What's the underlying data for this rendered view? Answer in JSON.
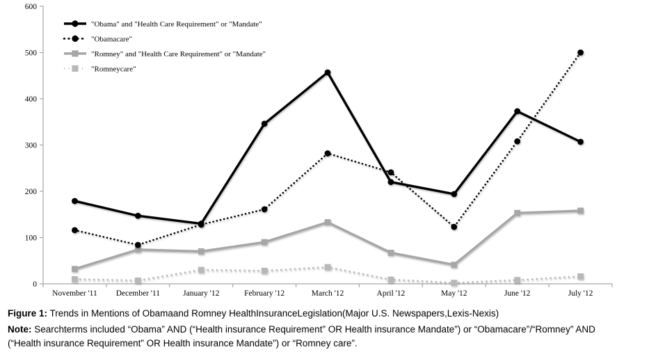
{
  "figure": {
    "caption_label": "Figure 1:",
    "caption_text": "Trends in Mentions of Obamaand Romney HealthInsuranceLegislation(Major U.S. Newspapers,Lexis-Nexis)",
    "note_label": "Note:",
    "note_text": "Searchterms included “Obama” AND (“Health insurance Requirement” OR Health insurance Mandate”) or “Obamacare”/“Romney” AND (“Health insurance Requirement” OR Health insurance Mandate”) or “Romney care”."
  },
  "chart_data": {
    "type": "line",
    "title": "",
    "xlabel": "",
    "ylabel": "",
    "ylim": [
      0,
      600
    ],
    "ytick_interval": 100,
    "grid": false,
    "legend_position": "top-left",
    "axis_color": "#a6a6a6",
    "text_color": "#000000",
    "categories": [
      "November '11",
      "December '11",
      "January '12",
      "February '12",
      "March '12",
      "April '12",
      "May '12",
      "June '12",
      "July '12"
    ],
    "series": [
      {
        "name": "\"Obama\" and \"Health Care Requirement\" or \"Mandate\"",
        "color": "#000000",
        "line": "solid",
        "marker": "circle",
        "values": [
          179,
          147,
          130,
          346,
          457,
          220,
          194,
          373,
          307
        ]
      },
      {
        "name": "\"Obamacare\"",
        "color": "#000000",
        "line": "dotted",
        "marker": "circle",
        "values": [
          116,
          84,
          128,
          161,
          282,
          241,
          123,
          308,
          500
        ]
      },
      {
        "name": "\"Romney\" and \"Health Care Requirement\" or \"Mandate\"",
        "color": "#a6a6a6",
        "line": "solid",
        "marker": "square",
        "values": [
          32,
          74,
          70,
          90,
          133,
          67,
          41,
          153,
          158
        ]
      },
      {
        "name": "\"Romneycare\"",
        "color": "#b8b8b8",
        "line": "dotted",
        "marker": "square",
        "values": [
          10,
          7,
          30,
          28,
          36,
          9,
          2,
          8,
          16
        ]
      }
    ]
  }
}
